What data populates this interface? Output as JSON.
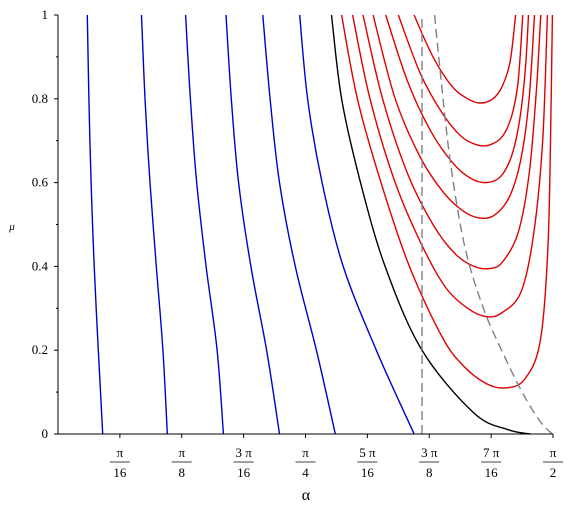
{
  "chart_data": {
    "type": "line",
    "xlabel": "α",
    "ylabel": "μ",
    "xlim": [
      0,
      1.5708
    ],
    "ylim": [
      0,
      1
    ],
    "x_ticks": [
      {
        "value": 0.19635,
        "num": "π",
        "den": "16"
      },
      {
        "value": 0.392699,
        "num": "π",
        "den": "8"
      },
      {
        "value": 0.589049,
        "num": "3 π",
        "den": "16"
      },
      {
        "value": 0.785398,
        "num": "π",
        "den": "4"
      },
      {
        "value": 0.981748,
        "num": "5 π",
        "den": "16"
      },
      {
        "value": 1.178097,
        "num": "3 π",
        "den": "8"
      },
      {
        "value": 1.374447,
        "num": "7 π",
        "den": "16"
      },
      {
        "value": 1.570796,
        "num": "π",
        "den": "2"
      }
    ],
    "y_ticks": [
      "0",
      "0.2",
      "0.4",
      "0.6",
      "0.8",
      "1"
    ],
    "y_tick_values": [
      0,
      0.2,
      0.4,
      0.6,
      0.8,
      1
    ],
    "grid": false,
    "colors": {
      "blue": "#0000cc",
      "black": "#000000",
      "red": "#e00000",
      "dashed": "#808080"
    },
    "series": [
      {
        "color": "#0000cc",
        "points": [
          [
            0.093,
            1.0
          ],
          [
            0.098,
            0.8
          ],
          [
            0.105,
            0.6
          ],
          [
            0.115,
            0.4
          ],
          [
            0.128,
            0.2
          ],
          [
            0.142,
            0.0
          ]
        ]
      },
      {
        "color": "#0000cc",
        "points": [
          [
            0.265,
            1.0
          ],
          [
            0.276,
            0.8
          ],
          [
            0.292,
            0.6
          ],
          [
            0.312,
            0.4
          ],
          [
            0.333,
            0.2
          ],
          [
            0.347,
            0.0
          ]
        ]
      },
      {
        "color": "#0000cc",
        "points": [
          [
            0.405,
            1.0
          ],
          [
            0.42,
            0.8
          ],
          [
            0.44,
            0.6
          ],
          [
            0.47,
            0.4
          ],
          [
            0.505,
            0.2
          ],
          [
            0.525,
            0.0
          ]
        ]
      },
      {
        "color": "#0000cc",
        "points": [
          [
            0.533,
            1.0
          ],
          [
            0.55,
            0.8
          ],
          [
            0.573,
            0.6
          ],
          [
            0.612,
            0.4
          ],
          [
            0.662,
            0.2
          ],
          [
            0.703,
            0.0
          ]
        ]
      },
      {
        "color": "#0000cc",
        "points": [
          [
            0.65,
            1.0
          ],
          [
            0.673,
            0.8
          ],
          [
            0.703,
            0.6
          ],
          [
            0.753,
            0.4
          ],
          [
            0.82,
            0.2
          ],
          [
            0.88,
            0.0
          ]
        ]
      },
      {
        "color": "#0000cc",
        "points": [
          [
            0.767,
            1.0
          ],
          [
            0.792,
            0.8
          ],
          [
            0.838,
            0.6
          ],
          [
            0.905,
            0.4
          ],
          [
            1.01,
            0.2
          ],
          [
            1.13,
            0.0
          ]
        ]
      },
      {
        "color": "#000000",
        "points": [
          [
            0.868,
            1.0
          ],
          [
            0.9,
            0.8
          ],
          [
            0.96,
            0.6
          ],
          [
            1.038,
            0.4
          ],
          [
            1.155,
            0.2
          ],
          [
            1.32,
            0.05
          ],
          [
            1.43,
            0.01
          ],
          [
            1.5,
            0.0
          ]
        ]
      },
      {
        "color": "#e00000",
        "points": [
          [
            0.9,
            1.0
          ],
          [
            0.95,
            0.8
          ],
          [
            1.025,
            0.6
          ],
          [
            1.115,
            0.4
          ],
          [
            1.22,
            0.23
          ],
          [
            1.29,
            0.16
          ],
          [
            1.36,
            0.12
          ],
          [
            1.42,
            0.11
          ],
          [
            1.48,
            0.13
          ],
          [
            1.53,
            0.22
          ],
          [
            1.555,
            0.45
          ],
          [
            1.565,
            0.8
          ],
          [
            1.569,
            1.0
          ]
        ]
      },
      {
        "color": "#e00000",
        "points": [
          [
            0.935,
            1.0
          ],
          [
            0.99,
            0.8
          ],
          [
            1.07,
            0.6
          ],
          [
            1.155,
            0.45
          ],
          [
            1.23,
            0.35
          ],
          [
            1.3,
            0.3
          ],
          [
            1.36,
            0.28
          ],
          [
            1.41,
            0.29
          ],
          [
            1.47,
            0.34
          ],
          [
            1.51,
            0.48
          ],
          [
            1.538,
            0.7
          ],
          [
            1.553,
            1.0
          ]
        ]
      },
      {
        "color": "#e00000",
        "points": [
          [
            0.968,
            1.0
          ],
          [
            1.03,
            0.8
          ],
          [
            1.11,
            0.62
          ],
          [
            1.19,
            0.5
          ],
          [
            1.26,
            0.43
          ],
          [
            1.32,
            0.4
          ],
          [
            1.37,
            0.395
          ],
          [
            1.41,
            0.41
          ],
          [
            1.46,
            0.48
          ],
          [
            1.495,
            0.62
          ],
          [
            1.518,
            0.82
          ],
          [
            1.532,
            1.0
          ]
        ]
      },
      {
        "color": "#e00000",
        "points": [
          [
            1.0,
            1.0
          ],
          [
            1.07,
            0.8
          ],
          [
            1.15,
            0.66
          ],
          [
            1.225,
            0.575
          ],
          [
            1.29,
            0.53
          ],
          [
            1.345,
            0.515
          ],
          [
            1.39,
            0.525
          ],
          [
            1.435,
            0.57
          ],
          [
            1.47,
            0.66
          ],
          [
            1.495,
            0.8
          ],
          [
            1.512,
            1.0
          ]
        ]
      },
      {
        "color": "#e00000",
        "points": [
          [
            1.04,
            1.0
          ],
          [
            1.11,
            0.84
          ],
          [
            1.185,
            0.72
          ],
          [
            1.255,
            0.645
          ],
          [
            1.31,
            0.61
          ],
          [
            1.36,
            0.6
          ],
          [
            1.405,
            0.615
          ],
          [
            1.44,
            0.665
          ],
          [
            1.465,
            0.75
          ],
          [
            1.483,
            0.87
          ],
          [
            1.493,
            1.0
          ]
        ]
      },
      {
        "color": "#e00000",
        "points": [
          [
            1.08,
            1.0
          ],
          [
            1.15,
            0.86
          ],
          [
            1.22,
            0.765
          ],
          [
            1.28,
            0.71
          ],
          [
            1.33,
            0.69
          ],
          [
            1.37,
            0.69
          ],
          [
            1.41,
            0.71
          ],
          [
            1.44,
            0.76
          ],
          [
            1.46,
            0.84
          ],
          [
            1.475,
            1.0
          ]
        ]
      },
      {
        "color": "#e00000",
        "points": [
          [
            1.13,
            1.0
          ],
          [
            1.19,
            0.9
          ],
          [
            1.25,
            0.83
          ],
          [
            1.3,
            0.8
          ],
          [
            1.34,
            0.79
          ],
          [
            1.38,
            0.8
          ],
          [
            1.41,
            0.83
          ],
          [
            1.435,
            0.89
          ],
          [
            1.452,
            1.0
          ]
        ]
      }
    ],
    "dashed_series": [
      {
        "color": "#808080",
        "points": [
          [
            1.155,
            0.0
          ],
          [
            1.155,
            1.0
          ]
        ]
      },
      {
        "color": "#808080",
        "points": [
          [
            1.195,
            1.0
          ],
          [
            1.215,
            0.85
          ],
          [
            1.245,
            0.65
          ],
          [
            1.29,
            0.45
          ],
          [
            1.35,
            0.3
          ],
          [
            1.42,
            0.18
          ],
          [
            1.48,
            0.09
          ],
          [
            1.53,
            0.03
          ],
          [
            1.568,
            0.0
          ]
        ]
      }
    ]
  }
}
